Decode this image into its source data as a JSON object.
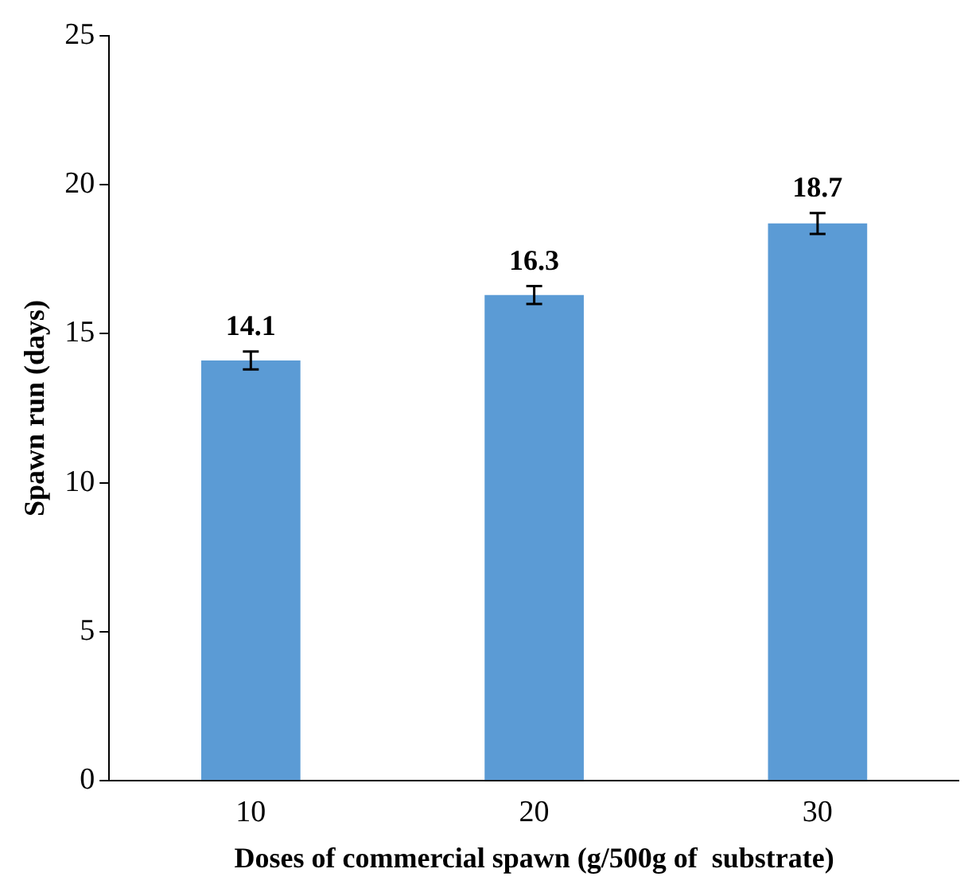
{
  "chart_data": {
    "type": "bar",
    "xlabel": "Doses of commercial spawn (g/500g of  substrate)",
    "ylabel": "Spawn run (days)",
    "categories": [
      "10",
      "20",
      "30"
    ],
    "values": [
      14.1,
      16.3,
      18.7
    ],
    "errors": [
      0.3,
      0.3,
      0.35
    ],
    "color": "#5b9bd5",
    "ylim": [
      0,
      25
    ],
    "yticks": [
      0,
      5,
      10,
      15,
      20,
      25
    ],
    "grid": false,
    "data_labels": true
  }
}
